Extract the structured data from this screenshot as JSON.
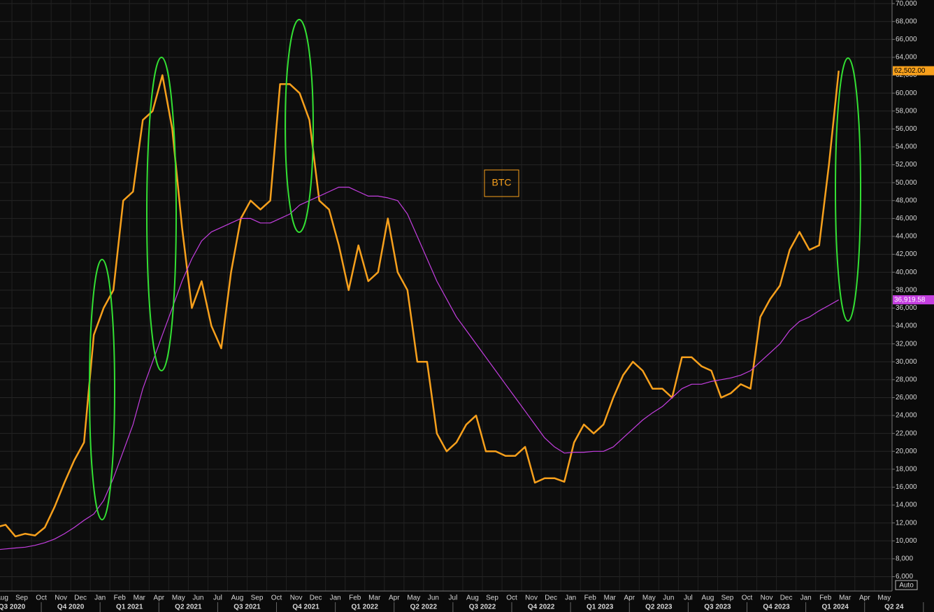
{
  "chart_data": {
    "type": "line",
    "annotation": "BTC",
    "categories": [
      "Aug",
      null,
      "Sep",
      null,
      "Oct",
      null,
      "Nov",
      null,
      "Dec",
      null,
      "Jan",
      null,
      "Feb",
      null,
      "Mar",
      null,
      "Apr",
      null,
      "May",
      null,
      "Jun",
      null,
      "Jul",
      null,
      "Aug",
      null,
      "Sep",
      null,
      "Oct",
      null,
      "Nov",
      null,
      "Dec",
      null,
      "Jan",
      null,
      "Feb",
      null,
      "Mar",
      null,
      "Apr",
      null,
      "May",
      null,
      "Jun",
      null,
      "Jul",
      null,
      "Aug",
      null,
      "Sep",
      null,
      "Oct",
      null,
      "Nov",
      null,
      "Dec",
      null,
      "Jan",
      null,
      "Feb",
      null,
      "Mar",
      null,
      "Apr",
      null,
      "May",
      null,
      "Jun",
      null,
      "Jul",
      null,
      "Aug",
      null,
      "Sep",
      null,
      "Oct",
      null,
      "Nov",
      null,
      "Dec",
      null,
      "Jan",
      null,
      "Feb",
      null,
      "Mar",
      null,
      "Apr",
      null,
      "May",
      null
    ],
    "quarters": [
      "Q3 2020",
      "Q4 2020",
      "Q1 2021",
      "Q2 2021",
      "Q3 2021",
      "Q4 2021",
      "Q1 2022",
      "Q2 2022",
      "Q3 2022",
      "Q4 2022",
      "Q1 2023",
      "Q2 2023",
      "Q3 2023",
      "Q4 2023",
      "Q1 2024",
      "Q2 24"
    ],
    "series": [
      {
        "color": "#f7a01c",
        "values": [
          11500,
          11800,
          10500,
          10800,
          10600,
          11500,
          13800,
          16500,
          19000,
          21000,
          33000,
          36000,
          38000,
          48000,
          49000,
          57000,
          58000,
          62000,
          56000,
          45000,
          36000,
          39000,
          34000,
          31500,
          40000,
          46000,
          48000,
          47000,
          48000,
          61000,
          61000,
          60000,
          57000,
          48000,
          47000,
          43000,
          38000,
          43000,
          39000,
          40000,
          46000,
          40000,
          38000,
          30000,
          30000,
          22000,
          20000,
          21000,
          23000,
          24000,
          20000,
          20000,
          19500,
          19500,
          20500,
          16500,
          17000,
          17000,
          16600,
          21000,
          23000,
          22000,
          23000,
          26000,
          28500,
          30000,
          29000,
          27000,
          27000,
          26000,
          30500,
          30500,
          29500,
          29000,
          26000,
          26500,
          27500,
          27000,
          35000,
          37000,
          38500,
          42500,
          44500,
          42500,
          43000,
          52000,
          62502,
          null,
          null,
          null,
          null,
          null
        ],
        "value_labels": [
          null,
          null,
          null,
          null,
          null,
          null,
          null,
          null,
          null,
          null,
          null,
          null,
          null,
          null,
          null,
          null,
          null,
          null,
          null,
          null,
          null,
          null,
          null,
          null,
          null,
          null,
          null,
          null,
          null,
          null,
          null,
          null,
          null,
          null,
          null,
          null,
          null,
          null,
          null,
          null,
          null,
          null,
          null,
          null,
          null,
          null,
          null,
          null,
          null,
          null,
          null,
          null,
          null,
          null,
          null,
          null,
          null,
          null,
          null,
          null,
          null,
          null,
          null,
          null,
          null,
          null,
          null,
          null,
          null,
          null,
          null,
          null,
          null,
          null,
          null,
          null,
          null,
          null,
          null,
          null,
          null,
          null,
          null,
          null,
          null,
          null,
          "62,502.00",
          null,
          null,
          null,
          null,
          null
        ]
      },
      {
        "color": "#c43ee0",
        "values": [
          9000,
          9100,
          9200,
          9300,
          9500,
          9800,
          10200,
          10800,
          11500,
          12300,
          13000,
          14500,
          17000,
          20000,
          23000,
          27000,
          30000,
          33000,
          36000,
          39000,
          41500,
          43500,
          44500,
          45000,
          45500,
          46000,
          46000,
          45500,
          45500,
          46000,
          46500,
          47500,
          48000,
          48500,
          49000,
          49500,
          49500,
          49000,
          48500,
          48500,
          48300,
          48000,
          46500,
          44000,
          41500,
          39000,
          37000,
          35000,
          33500,
          32000,
          30500,
          29000,
          27500,
          26000,
          24500,
          23000,
          21500,
          20500,
          19800,
          19900,
          19900,
          20000,
          20000,
          20500,
          21500,
          22500,
          23500,
          24300,
          25000,
          26000,
          27000,
          27500,
          27500,
          27800,
          28000,
          28200,
          28500,
          29000,
          30000,
          31000,
          32000,
          33500,
          34500,
          35000,
          35700,
          36300,
          36919.58,
          null,
          null,
          null,
          null,
          null
        ],
        "value_labels": [
          null,
          null,
          null,
          null,
          null,
          null,
          null,
          null,
          null,
          null,
          null,
          null,
          null,
          null,
          null,
          null,
          null,
          null,
          null,
          null,
          null,
          null,
          null,
          null,
          null,
          null,
          null,
          null,
          null,
          null,
          null,
          null,
          null,
          null,
          null,
          null,
          null,
          null,
          null,
          null,
          null,
          null,
          null,
          null,
          null,
          null,
          null,
          null,
          null,
          null,
          null,
          null,
          null,
          null,
          null,
          null,
          null,
          null,
          null,
          null,
          null,
          null,
          null,
          null,
          null,
          null,
          null,
          null,
          null,
          null,
          null,
          null,
          null,
          null,
          null,
          null,
          null,
          null,
          null,
          null,
          null,
          null,
          null,
          null,
          null,
          null,
          "36,919.58",
          null,
          null,
          null,
          null,
          null
        ]
      }
    ],
    "ylim": [
      4400,
      70400
    ],
    "yticks": [
      {
        "value": 6000,
        "label": "6,000"
      },
      {
        "value": 8000,
        "label": "8,000"
      },
      {
        "value": 10000,
        "label": "10,000"
      },
      {
        "value": 12000,
        "label": "12,000"
      },
      {
        "value": 14000,
        "label": "14,000"
      },
      {
        "value": 16000,
        "label": "16,000"
      },
      {
        "value": 18000,
        "label": "18,000"
      },
      {
        "value": 20000,
        "label": "20,000"
      },
      {
        "value": 22000,
        "label": "22,000"
      },
      {
        "value": 24000,
        "label": "24,000"
      },
      {
        "value": 26000,
        "label": "26,000"
      },
      {
        "value": 28000,
        "label": "28,000"
      },
      {
        "value": 30000,
        "label": "30,000"
      },
      {
        "value": 32000,
        "label": "32,000"
      },
      {
        "value": 34000,
        "label": "34,000"
      },
      {
        "value": 36000,
        "label": "36,000"
      },
      {
        "value": 38000,
        "label": "38,000"
      },
      {
        "value": 40000,
        "label": "40,000"
      },
      {
        "value": 42000,
        "label": "42,000"
      },
      {
        "value": 44000,
        "label": "44,000"
      },
      {
        "value": 46000,
        "label": "46,000"
      },
      {
        "value": 48000,
        "label": "48,000"
      },
      {
        "value": 50000,
        "label": "50,000"
      },
      {
        "value": 52000,
        "label": "52,000"
      },
      {
        "value": 54000,
        "label": "54,000"
      },
      {
        "value": 56000,
        "label": "56,000"
      },
      {
        "value": 58000,
        "label": "58,000"
      },
      {
        "value": 60000,
        "label": "60,000"
      },
      {
        "value": 62000,
        "label": "62,000"
      },
      {
        "value": 64000,
        "label": "64,000"
      },
      {
        "value": 66000,
        "label": "66,000"
      },
      {
        "value": 68000,
        "label": "68,000"
      },
      {
        "value": 70000,
        "label": "70,000"
      }
    ],
    "grid": true,
    "scale_button": "Auto"
  }
}
